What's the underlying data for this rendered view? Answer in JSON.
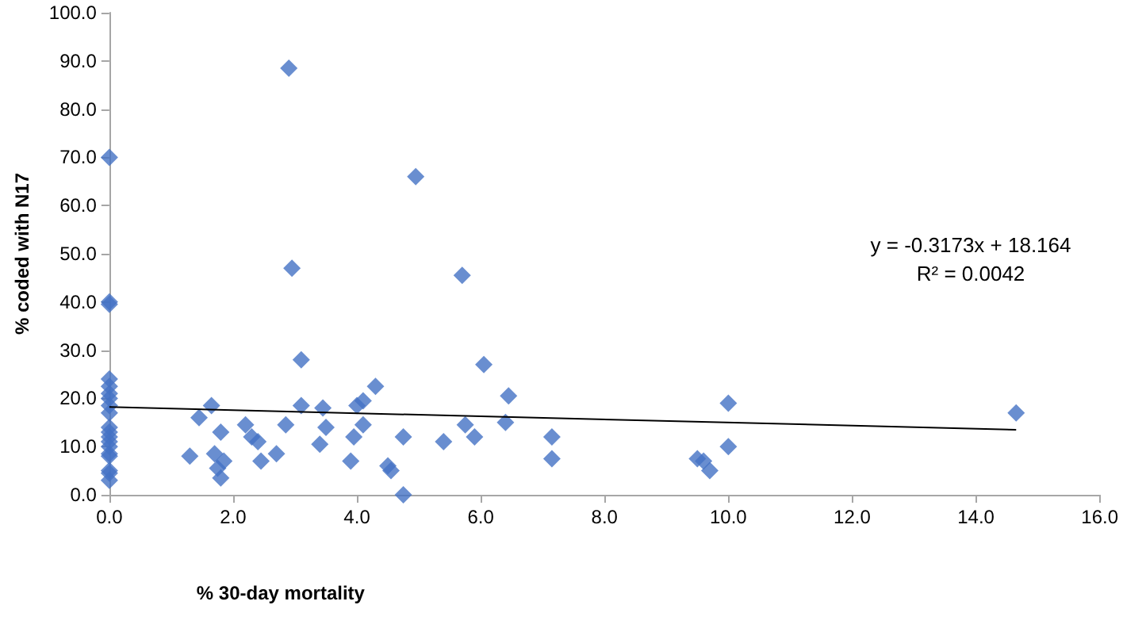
{
  "chart_data": {
    "type": "scatter",
    "xlabel": "% 30-day mortality",
    "ylabel": "% coded with N17",
    "xlim": [
      0,
      16
    ],
    "xticks": [
      {
        "value": 0,
        "label": "0.0"
      },
      {
        "value": 2,
        "label": "2.0"
      },
      {
        "value": 4,
        "label": "4.0"
      },
      {
        "value": 6,
        "label": "6.0"
      },
      {
        "value": 8,
        "label": "8.0"
      },
      {
        "value": 10,
        "label": "10.0"
      },
      {
        "value": 12,
        "label": "12.0"
      },
      {
        "value": 14,
        "label": "14.0"
      },
      {
        "value": 16,
        "label": "16.0"
      }
    ],
    "ylim": [
      0,
      100
    ],
    "yticks": [
      {
        "value": 0,
        "label": "0.0"
      },
      {
        "value": 10,
        "label": "10.0"
      },
      {
        "value": 20,
        "label": "20.0"
      },
      {
        "value": 30,
        "label": "30.0"
      },
      {
        "value": 40,
        "label": "40.0"
      },
      {
        "value": 50,
        "label": "50.0"
      },
      {
        "value": 60,
        "label": "60.0"
      },
      {
        "value": 70,
        "label": "70.0"
      },
      {
        "value": 80,
        "label": "80.0"
      },
      {
        "value": 90,
        "label": "90.0"
      },
      {
        "value": 100,
        "label": "100.0"
      }
    ],
    "grid": false,
    "marker": "diamond",
    "annotations": [
      "y = -0.3173x + 18.164",
      "R² = 0.0042"
    ],
    "series": [
      {
        "color": "#4472c4",
        "x": [
          0,
          0,
          0,
          0,
          0,
          0,
          0,
          0,
          0,
          0,
          0,
          0,
          0,
          0,
          0,
          0,
          0,
          0,
          0,
          1.3,
          1.45,
          1.65,
          1.7,
          1.8,
          1.75,
          1.85,
          1.8,
          2.2,
          2.3,
          2.4,
          2.45,
          2.7,
          2.85,
          2.9,
          2.95,
          3.1,
          3.1,
          3.4,
          3.45,
          3.5,
          3.9,
          3.95,
          4.0,
          4.1,
          4.1,
          4.3,
          4.5,
          4.55,
          4.75,
          4.75,
          4.95,
          5.4,
          5.7,
          5.75,
          5.9,
          6.05,
          6.4,
          6.45,
          7.15,
          7.15,
          9.5,
          9.6,
          9.7,
          10.0,
          10.0,
          14.65
        ],
        "values": [
          70,
          40,
          39.5,
          24,
          22.5,
          21,
          20,
          18.5,
          17,
          14,
          13,
          12,
          11,
          10,
          8.5,
          8,
          5,
          4.5,
          3,
          8,
          16,
          18.5,
          8.5,
          13,
          5.5,
          7,
          3.5,
          14.5,
          12,
          11,
          7,
          8.5,
          14.5,
          88.5,
          47,
          28,
          18.5,
          10.5,
          18,
          14,
          7,
          12,
          18.5,
          14.5,
          19.5,
          22.5,
          6,
          5,
          12,
          0,
          66,
          11,
          45.5,
          14.5,
          12,
          27,
          15,
          20.5,
          12,
          7.5,
          7.5,
          7,
          5,
          19,
          10,
          17
        ]
      },
      {
        "type": "line",
        "color": "#000000",
        "line_style": "solid",
        "marker": "none",
        "x": [
          0,
          14.65
        ],
        "values": [
          18.2,
          13.5
        ]
      }
    ]
  }
}
